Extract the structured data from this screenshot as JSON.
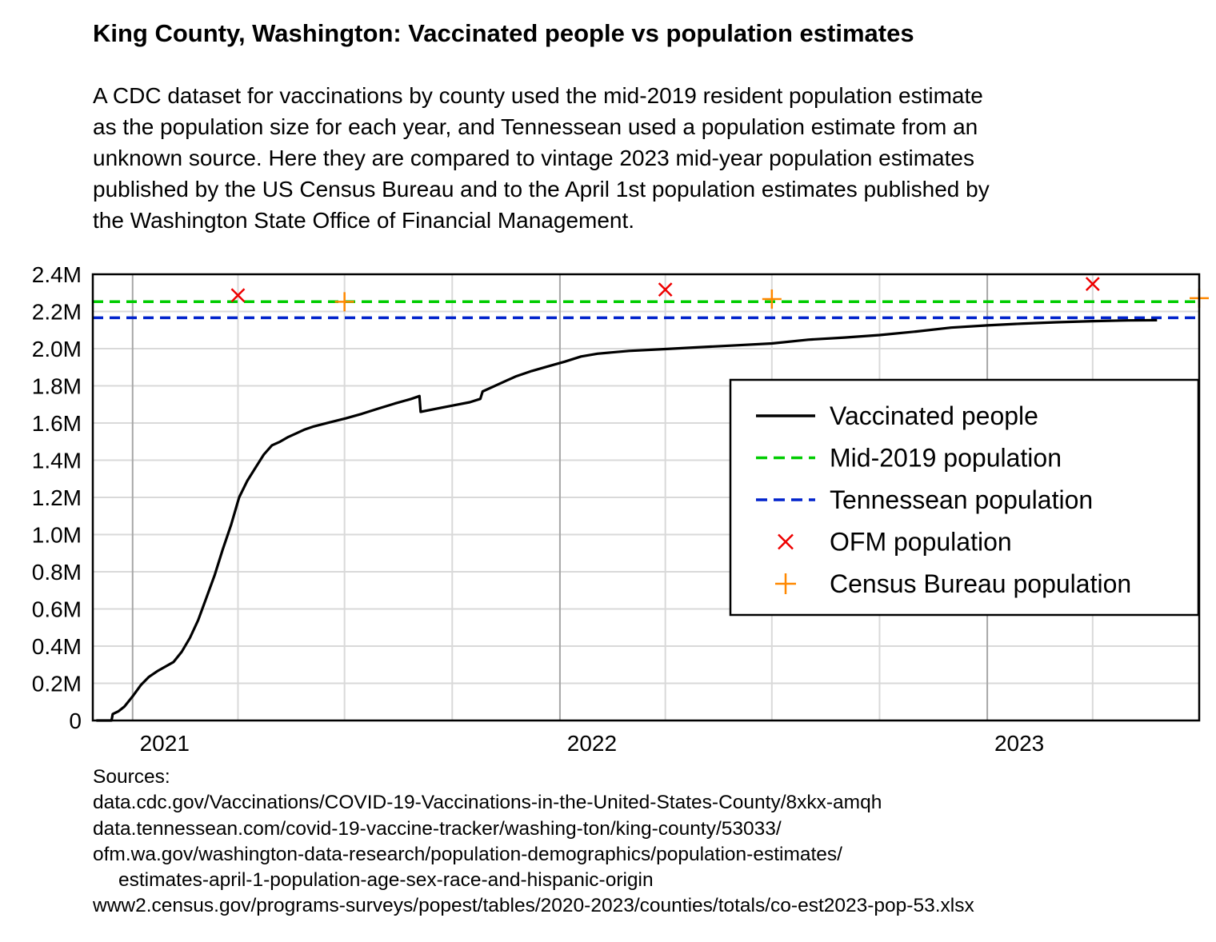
{
  "title": "King County, Washington: Vaccinated people vs population estimates",
  "subtitle_lines": [
    "A CDC dataset for vaccinations by county used the mid-2019 resident population estimate",
    "as the population size for each year, and Tennessean used a population estimate from an",
    "unknown source. Here they are compared to vintage 2023 mid-year population estimates",
    "published by the US Census Bureau and to the April 1st population estimates published by",
    "the Washington State Office of Financial Management."
  ],
  "sources": {
    "heading": "Sources:",
    "lines": [
      "data.cdc.gov/Vaccinations/COVID-19-Vaccinations-in-the-United-States-County/8xkx-amqh",
      "data.tennessean.com/covid-19-vaccine-tracker/washing-ton/king-county/53033/",
      "ofm.wa.gov/washington-data-research/population-demographics/population-estimates/",
      "estimates-april-1-population-age-sex-race-and-hispanic-origin",
      "www2.census.gov/programs-surveys/popest/tables/2020-2023/counties/totals/co-est2023-pop-53.xlsx"
    ]
  },
  "colors": {
    "vaccinated": "#000000",
    "mid2019": "#00cc00",
    "tennessean": "#0022cc",
    "ofm": "#ee0000",
    "census": "#ff8800",
    "grid_major": "#a6a6a6",
    "grid_minor": "#d9d9d9"
  },
  "chart_data": {
    "type": "line",
    "x_range": [
      "2020-11-28",
      "2023-07-01"
    ],
    "ylim": [
      0,
      2400000
    ],
    "y_ticks": [
      0,
      200000,
      400000,
      600000,
      800000,
      1000000,
      1200000,
      1400000,
      1600000,
      1800000,
      2000000,
      2200000,
      2400000
    ],
    "y_tick_labels": [
      "0",
      "0.2M",
      "0.4M",
      "0.6M",
      "0.8M",
      "1.0M",
      "1.2M",
      "1.4M",
      "1.6M",
      "1.8M",
      "2.0M",
      "2.2M",
      "2.4M"
    ],
    "x_major_ticks": [
      "2021-01-01",
      "2022-01-01",
      "2023-01-01"
    ],
    "x_tick_labels": [
      "2021",
      "2022",
      "2023"
    ],
    "x_minor_ticks": [
      "2021-04-01",
      "2021-07-01",
      "2021-10-01",
      "2022-04-01",
      "2022-07-01",
      "2022-10-01",
      "2023-04-01",
      "2023-07-01"
    ],
    "grid": true,
    "legend_position": "center-right",
    "legend": [
      "Vaccinated people",
      "Mid-2019 population",
      "Tennessean population",
      "OFM population",
      "Census Bureau population"
    ],
    "series": [
      {
        "name": "Vaccinated people",
        "style": "solid",
        "points": [
          [
            "2020-12-01",
            0
          ],
          [
            "2020-12-14",
            0
          ],
          [
            "2020-12-15",
            35000
          ],
          [
            "2020-12-20",
            50000
          ],
          [
            "2020-12-25",
            75000
          ],
          [
            "2021-01-01",
            130000
          ],
          [
            "2021-01-08",
            190000
          ],
          [
            "2021-01-15",
            235000
          ],
          [
            "2021-01-22",
            265000
          ],
          [
            "2021-01-29",
            290000
          ],
          [
            "2021-02-05",
            315000
          ],
          [
            "2021-02-12",
            370000
          ],
          [
            "2021-02-19",
            445000
          ],
          [
            "2021-02-26",
            540000
          ],
          [
            "2021-03-05",
            660000
          ],
          [
            "2021-03-12",
            780000
          ],
          [
            "2021-03-19",
            920000
          ],
          [
            "2021-03-26",
            1050000
          ],
          [
            "2021-04-02",
            1200000
          ],
          [
            "2021-04-09",
            1290000
          ],
          [
            "2021-04-16",
            1360000
          ],
          [
            "2021-04-23",
            1430000
          ],
          [
            "2021-04-30",
            1480000
          ],
          [
            "2021-05-07",
            1500000
          ],
          [
            "2021-05-14",
            1525000
          ],
          [
            "2021-05-21",
            1545000
          ],
          [
            "2021-05-28",
            1565000
          ],
          [
            "2021-06-04",
            1580000
          ],
          [
            "2021-06-18",
            1603000
          ],
          [
            "2021-07-02",
            1625000
          ],
          [
            "2021-07-16",
            1650000
          ],
          [
            "2021-07-30",
            1678000
          ],
          [
            "2021-08-13",
            1705000
          ],
          [
            "2021-08-27",
            1730000
          ],
          [
            "2021-09-03",
            1745000
          ],
          [
            "2021-09-04",
            1660000
          ],
          [
            "2021-09-18",
            1678000
          ],
          [
            "2021-10-02",
            1695000
          ],
          [
            "2021-10-16",
            1712000
          ],
          [
            "2021-10-25",
            1730000
          ],
          [
            "2021-10-27",
            1770000
          ],
          [
            "2021-11-10",
            1810000
          ],
          [
            "2021-11-24",
            1850000
          ],
          [
            "2021-12-08",
            1880000
          ],
          [
            "2021-12-22",
            1905000
          ],
          [
            "2022-01-05",
            1930000
          ],
          [
            "2022-01-19",
            1958000
          ],
          [
            "2022-02-02",
            1973000
          ],
          [
            "2022-03-01",
            1988000
          ],
          [
            "2022-04-01",
            1998000
          ],
          [
            "2022-05-01",
            2008000
          ],
          [
            "2022-06-01",
            2018000
          ],
          [
            "2022-07-01",
            2028000
          ],
          [
            "2022-08-01",
            2048000
          ],
          [
            "2022-09-01",
            2060000
          ],
          [
            "2022-10-01",
            2073000
          ],
          [
            "2022-11-01",
            2092000
          ],
          [
            "2022-12-01",
            2113000
          ],
          [
            "2023-01-01",
            2125000
          ],
          [
            "2023-02-01",
            2135000
          ],
          [
            "2023-03-01",
            2142000
          ],
          [
            "2023-04-01",
            2148000
          ],
          [
            "2023-05-01",
            2152000
          ],
          [
            "2023-05-26",
            2153000
          ]
        ]
      },
      {
        "name": "Mid-2019 population",
        "style": "dashed",
        "value": 2252782
      },
      {
        "name": "Tennessean population",
        "style": "dashed",
        "value": 2166000
      },
      {
        "name": "OFM population",
        "marker": "x",
        "points": [
          [
            "2021-04-01",
            2287050
          ],
          [
            "2022-04-01",
            2317700
          ],
          [
            "2023-04-01",
            2347800
          ]
        ]
      },
      {
        "name": "Census Bureau population",
        "marker": "+",
        "points": [
          [
            "2021-07-01",
            2252305
          ],
          [
            "2022-07-01",
            2266789
          ],
          [
            "2023-07-01",
            2271380
          ]
        ]
      }
    ]
  }
}
